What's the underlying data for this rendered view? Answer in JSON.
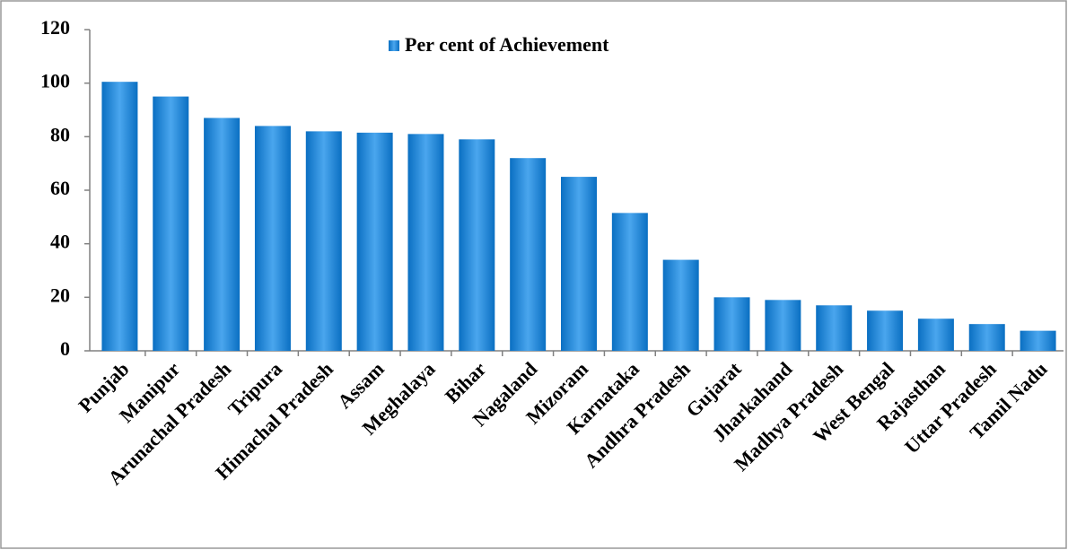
{
  "chart_data": {
    "type": "bar",
    "categories": [
      "Punjab",
      "Manipur",
      "Arunachal Pradesh",
      "Tripura",
      "Himachal Pradesh",
      "Assam",
      "Meghalaya",
      "Bihar",
      "Nagaland",
      "Mizoram",
      "Karnataka",
      "Andhra Pradesh",
      "Gujarat",
      "Jharkahand",
      "Madhya Pradesh",
      "West Bengal",
      "Rajasthan",
      "Uttar Pradesh",
      "Tamil Nadu"
    ],
    "series": [
      {
        "name": "Per cent of Achievement",
        "color": "#0a6fc2",
        "values": [
          100.5,
          95,
          87,
          84,
          82,
          81.5,
          81,
          79,
          72,
          65,
          51.5,
          34,
          20,
          19,
          17,
          15,
          12,
          10,
          7.5
        ]
      }
    ],
    "ylim": [
      0,
      120
    ],
    "yticks": [
      0,
      20,
      40,
      60,
      80,
      100,
      120
    ],
    "grid": false,
    "legend": "top"
  }
}
